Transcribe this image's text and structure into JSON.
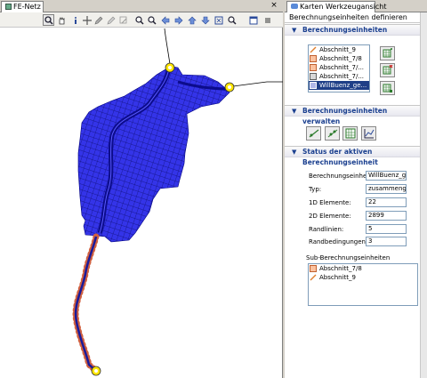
{
  "left_panel": {
    "tab_title": "FE-Netz",
    "tab_close": "×"
  },
  "toolbar": {
    "icons": [
      "zoom-icon",
      "pan-icon",
      "info-icon",
      "move-icon",
      "pencil-icon",
      "edit-icon",
      "edit-disabled-icon",
      "zoom-in-icon",
      "zoom-out-icon",
      "arrow-left-icon",
      "arrow-right-icon",
      "arrow-up-icon",
      "arrow-down-icon",
      "zoom-extent-icon",
      "search-icon",
      "window-icon",
      "menu-icon"
    ]
  },
  "right_panel": {
    "tab_title": "Karten Werkzeugansicht",
    "subtitle": "Berechnungseinheiten definieren",
    "section1": {
      "title": "Berechnungseinheiten",
      "items": [
        {
          "label": "Abschnitt_9",
          "icon": "line-icon",
          "selected": false
        },
        {
          "label": "Abschnitt_7/8",
          "icon": "region-icon",
          "selected": false
        },
        {
          "label": "Abschnitt_7/...",
          "icon": "region-icon",
          "selected": false
        },
        {
          "label": "Abschnitt_7/...",
          "icon": "region-icon",
          "selected": false
        },
        {
          "label": "WillBuenz_ge...",
          "icon": "region-icon",
          "selected": true
        }
      ]
    },
    "section2": {
      "title": "Berechnungseinheiten verwalten"
    },
    "section3": {
      "title": "Status der aktiven Berechnungseinheit",
      "fields": [
        {
          "label": "Berechnungseinheit:",
          "value": "WillBuenz_gel"
        },
        {
          "label": "Typ:",
          "value": "zusammengef"
        },
        {
          "label": "1D Elemente:",
          "value": "22"
        },
        {
          "label": "2D Elemente:",
          "value": "2899"
        },
        {
          "label": "Randlinien:",
          "value": "5"
        },
        {
          "label": "Randbedingungen:",
          "value": "3"
        }
      ],
      "sub_title": "Sub-Berechnungseinheiten",
      "sub_items": [
        {
          "label": "Abschnitt_7/8",
          "icon": "region-icon"
        },
        {
          "label": "Abschnitt_9",
          "icon": "line-icon"
        }
      ]
    }
  },
  "colors": {
    "mesh_fill": "#3232e6",
    "mesh_line": "#000080",
    "river_core": "#1010a0",
    "node_ring": "#c0504d",
    "section_text": "#1a3f8f",
    "selection": "#1f3f87"
  }
}
